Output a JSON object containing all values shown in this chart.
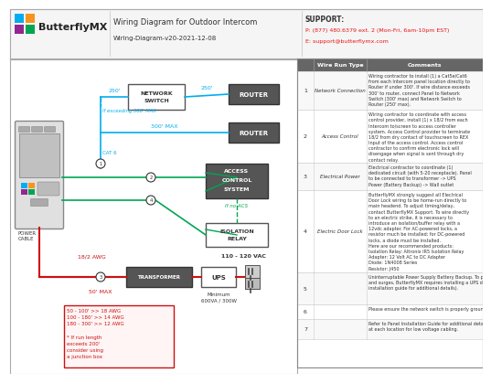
{
  "title": "Wiring Diagram for Outdoor Intercom",
  "subtitle": "Wiring-Diagram-v20-2021-12-08",
  "support_line1": "SUPPORT:",
  "support_line2": "P: (877) 480.6379 ext. 2 (Mon-Fri, 6am-10pm EST)",
  "support_line3": "E: support@butterflymx.com",
  "bg_color": "#ffffff",
  "cyan_color": "#00aeef",
  "green_color": "#00a651",
  "red_color": "#cc1111",
  "crimson_color": "#cc1111",
  "pink_box_border": "#cc1111",
  "box_dark": "#555555",
  "table_header_bg": "#666666",
  "logo_colors": [
    "#00aeef",
    "#f7941d",
    "#92278f",
    "#00a651"
  ],
  "table_rows": [
    {
      "num": "1",
      "type": "Network Connection",
      "comment": "Wiring contractor to install (1) a Cat5e/Cat6\nfrom each Intercom panel location directly to\nRouter if under 300'. If wire distance exceeds\n300' to router, connect Panel to Network\nSwitch (300' max) and Network Switch to\nRouter (250' max)."
    },
    {
      "num": "2",
      "type": "Access Control",
      "comment": "Wiring contractor to coordinate with access\ncontrol provider, install (1) x 18/2 from each\nIntercom to/screen to access controller\nsystem. Access Control provider to terminate\n18/2 from dry contact of touchscreen to REX\nInput of the access control. Access control\ncontractor to confirm electronic lock will\ndisengage when signal is sent through dry\ncontact relay."
    },
    {
      "num": "3",
      "type": "Electrical Power",
      "comment": "Electrical contractor to coordinate (1)\ndedicated circuit (with 5-20 receptacle). Panel\nto be connected to transformer -> UPS\nPower (Battery Backup) -> Wall outlet"
    },
    {
      "num": "4",
      "type": "Electric Door Lock",
      "comment": "ButterflyMX strongly suggest all Electrical\nDoor Lock wiring to be home-run directly to\nmain headend. To adjust timing/delay,\ncontact ButterflyMX Support. To wire directly\nto an electric strike, it is necessary to\nintroduce an isolation/buffer relay with a\n12vdc adapter. For AC-powered locks, a\nresistor much be installed; for DC-powered\nlocks, a diode must be installed.\nHere are our recommended products:\nIsolation Relay: Altronix IR5 Isolation Relay\nAdapter: 12 Volt AC to DC Adapter\nDiode: 1N4008 Series\nResistor: J450"
    },
    {
      "num": "5",
      "type": "",
      "comment": "Uninterruptable Power Supply Battery Backup. To prevent voltage drops\nand surges, ButterflyMX requires installing a UPS device (see panel\ninstallation guide for additional details)."
    },
    {
      "num": "6",
      "type": "",
      "comment": "Please ensure the network switch is properly grounded."
    },
    {
      "num": "7",
      "type": "",
      "comment": "Refer to Panel Installation Guide for additional details. Leave 6' service loop\nat each location for low voltage cabling."
    }
  ]
}
